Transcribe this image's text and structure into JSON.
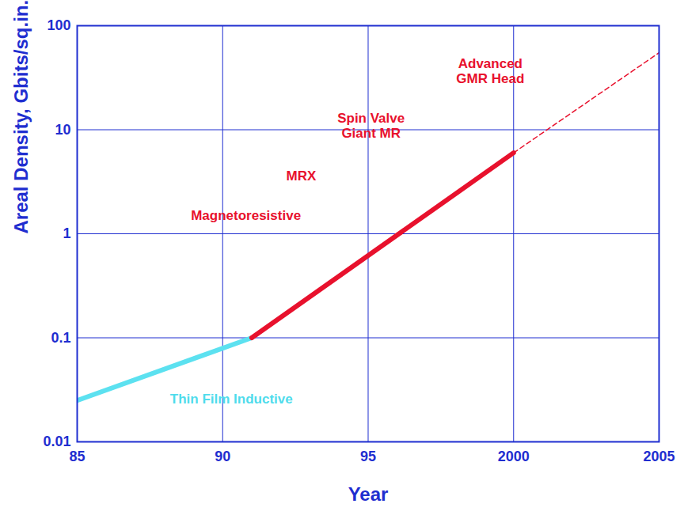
{
  "chart_data": {
    "type": "line",
    "x_label": "Year",
    "y_label": "Areal Density, Gbits/sq.in.",
    "log": "y",
    "grid": true,
    "xlim": [
      1985,
      2005
    ],
    "xticks": [
      {
        "value": 1985,
        "label": "85"
      },
      {
        "value": 1990,
        "label": "90"
      },
      {
        "value": 1995,
        "label": "95"
      },
      2000,
      2005
    ],
    "ylim": [
      0.01,
      100
    ],
    "yticks": [
      0.01,
      0.1,
      1,
      10,
      100
    ],
    "series": [
      {
        "color": "#5ce1f0",
        "line_style": "solid",
        "x": [
          1985,
          1991
        ],
        "values": [
          0.025,
          0.1
        ]
      },
      {
        "color": "#e8112d",
        "line_style": "solid",
        "x": [
          1991,
          2000
        ],
        "values": [
          0.1,
          6
        ]
      },
      {
        "color": "#e8112d",
        "line_style": "dashed",
        "x": [
          2000,
          2005
        ],
        "values": [
          6,
          55
        ]
      }
    ],
    "annotations": [
      {
        "text": "Thin Film Inductive",
        "x": 1990.3,
        "y": 0.026,
        "color": "#4fdcec"
      },
      {
        "text": "Magnetoresistive",
        "x": 1990.8,
        "y": 1.5,
        "color": "#e8112d"
      },
      {
        "text": "MRX",
        "x": 1992.7,
        "y": 3.6,
        "color": "#e8112d"
      },
      {
        "text": "Spin Valve\nGiant MR",
        "x": 1995.1,
        "y": 11,
        "color": "#e8112d"
      },
      {
        "text": "Advanced\nGMR Head",
        "x": 1999.2,
        "y": 37,
        "color": "#e8112d"
      }
    ]
  }
}
